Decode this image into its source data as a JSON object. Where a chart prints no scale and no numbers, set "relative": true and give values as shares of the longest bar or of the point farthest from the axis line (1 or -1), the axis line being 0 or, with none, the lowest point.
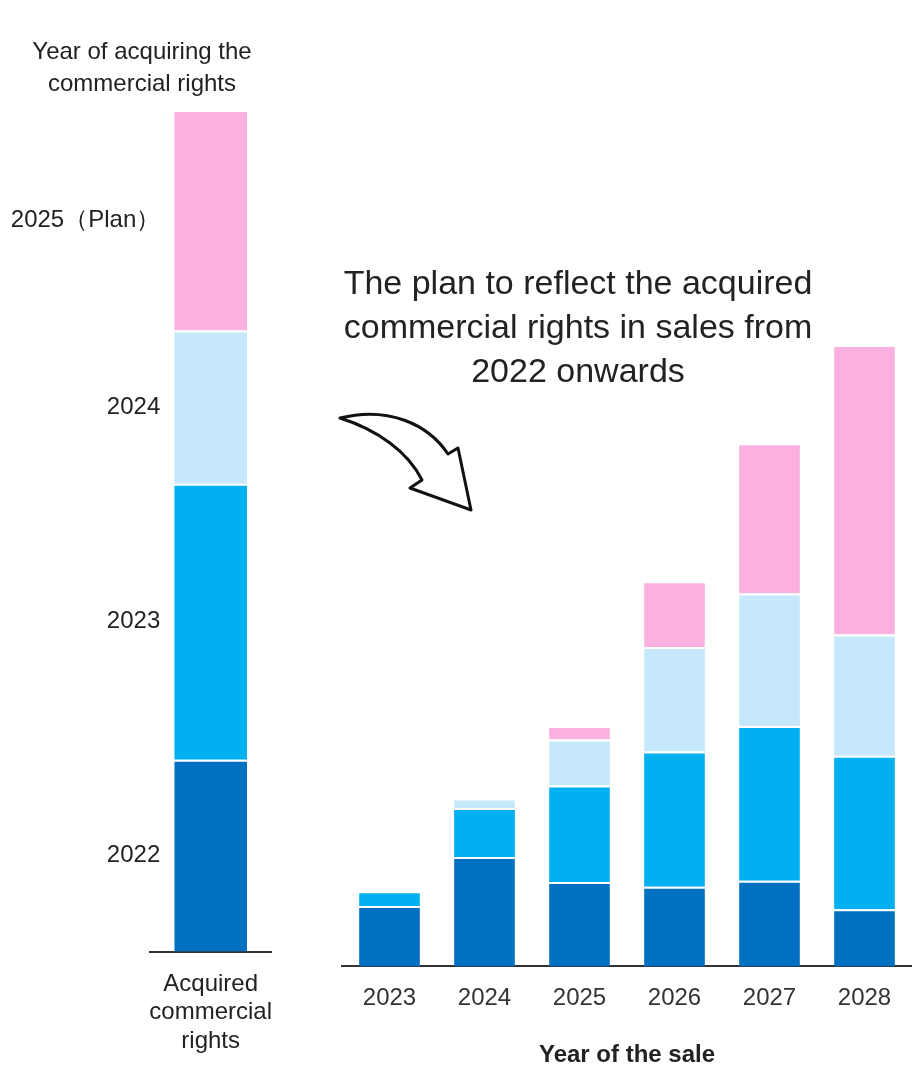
{
  "chart_data": [
    {
      "type": "bar",
      "stacked": true,
      "relative": true,
      "legend_title": "Year of acquiring the commercial rights",
      "categories": [
        "Acquired commercial rights"
      ],
      "series": [
        {
          "name": "2022",
          "color": "#0070c0",
          "values": [
            0.228
          ]
        },
        {
          "name": "2023",
          "color": "#00b0f0",
          "values": [
            0.328
          ]
        },
        {
          "name": "2024",
          "color": "#c5e8fb",
          "values": [
            0.182
          ]
        },
        {
          "name": "2025（Plan）",
          "color": "#fcb0e0",
          "values": [
            0.262
          ]
        }
      ]
    },
    {
      "type": "bar",
      "stacked": true,
      "relative": true,
      "xlabel": "Year of the sale",
      "annotations": [
        "The plan to reflect the acquired commercial rights in sales from 2022 onwards"
      ],
      "categories": [
        "2023",
        "2024",
        "2025",
        "2026",
        "2027",
        "2028"
      ],
      "series": [
        {
          "color": "#0070c0",
          "values": [
            0.097,
            0.176,
            0.136,
            0.128,
            0.138,
            0.092
          ]
        },
        {
          "color": "#00b0f0",
          "values": [
            0.024,
            0.079,
            0.155,
            0.218,
            0.249,
            0.247
          ]
        },
        {
          "color": "#c5e8fb",
          "values": [
            null,
            0.015,
            0.074,
            0.168,
            0.213,
            0.195
          ]
        },
        {
          "color": "#fcb0e0",
          "values": [
            null,
            null,
            0.022,
            0.106,
            0.242,
            0.466
          ]
        }
      ]
    }
  ]
}
